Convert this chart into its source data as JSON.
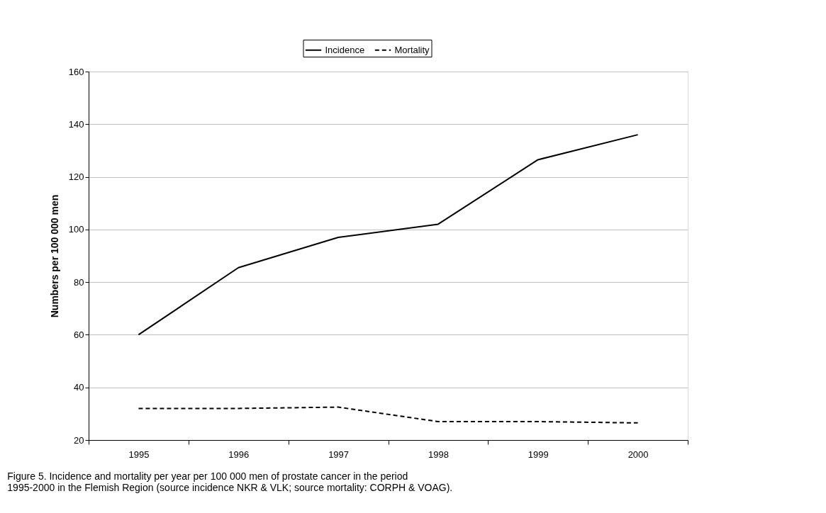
{
  "chart_data": {
    "type": "line",
    "ylabel": "Numbers per 100 000 men",
    "categories": [
      "1995",
      "1996",
      "1997",
      "1998",
      "1999",
      "2000"
    ],
    "series": [
      {
        "name": "Incidence",
        "color": "#000000",
        "line_style": "solid",
        "values": [
          60,
          85.5,
          97,
          102,
          126.5,
          136
        ]
      },
      {
        "name": "Mortality",
        "color": "#000000",
        "line_style": "dashed",
        "values": [
          32,
          32,
          32.5,
          27,
          27,
          26.5
        ]
      }
    ],
    "ylim": [
      20,
      160
    ],
    "yticks": [
      20,
      40,
      60,
      80,
      100,
      120,
      140,
      160
    ],
    "grid": "y",
    "legend": "top",
    "marker": "none",
    "annotations": [
      "Figure 5. Incidence and mortality per year per 100 000 men of prostate cancer in the period 1995-2000 in the Flemish Region (source incidence NKR & VLK; source mortality: CORPH & VOAG)."
    ]
  }
}
